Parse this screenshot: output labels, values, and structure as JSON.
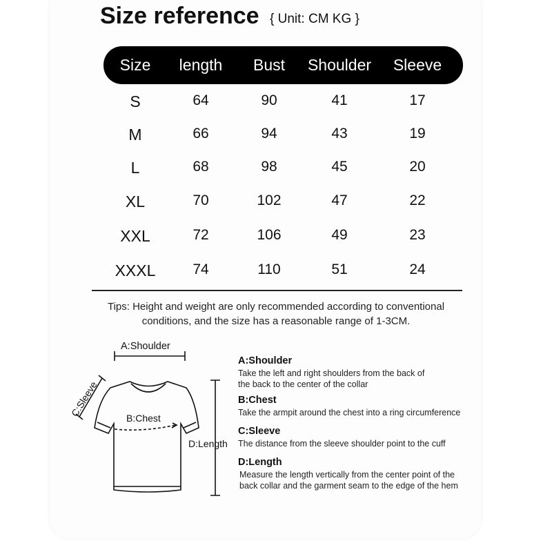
{
  "header": {
    "title": "Size reference",
    "unit": "{ Unit: CM KG }"
  },
  "table": {
    "columns": [
      "Size",
      "length",
      "Bust",
      "Shoulder",
      "Sleeve"
    ],
    "rows": [
      [
        "S",
        "64",
        "90",
        "41",
        "17"
      ],
      [
        "M",
        "66",
        "94",
        "43",
        "19"
      ],
      [
        "L",
        "68",
        "98",
        "45",
        "20"
      ],
      [
        "XL",
        "70",
        "102",
        "47",
        "22"
      ],
      [
        "XXL",
        "72",
        "106",
        "49",
        "23"
      ],
      [
        "XXXL",
        "74",
        "110",
        "51",
        "24"
      ]
    ]
  },
  "tips": [
    "Tips: Height and weight are only recommended according to conventional",
    "conditions, and the size has a reasonable range of 1-3CM."
  ],
  "diagram": {
    "shoulder": "A:Shoulder",
    "sleeve": "C:Sleeve",
    "chest": "B:Chest",
    "length": "D:Length"
  },
  "legend": [
    {
      "title": "A:Shoulder",
      "lines": [
        "Take the left and right shoulders from the back of",
        "the back to the center of the collar"
      ]
    },
    {
      "title": "B:Chest",
      "lines": [
        "Take the armpit around the chest into a ring circumference"
      ]
    },
    {
      "title": "C:Sleeve",
      "lines": [
        "The distance from the sleeve shoulder point to the cuff"
      ]
    },
    {
      "title": "D:Length",
      "lines": [
        "Measure the length vertically from the center point of the",
        "back collar and the garment seam to the edge of the hem"
      ]
    }
  ]
}
